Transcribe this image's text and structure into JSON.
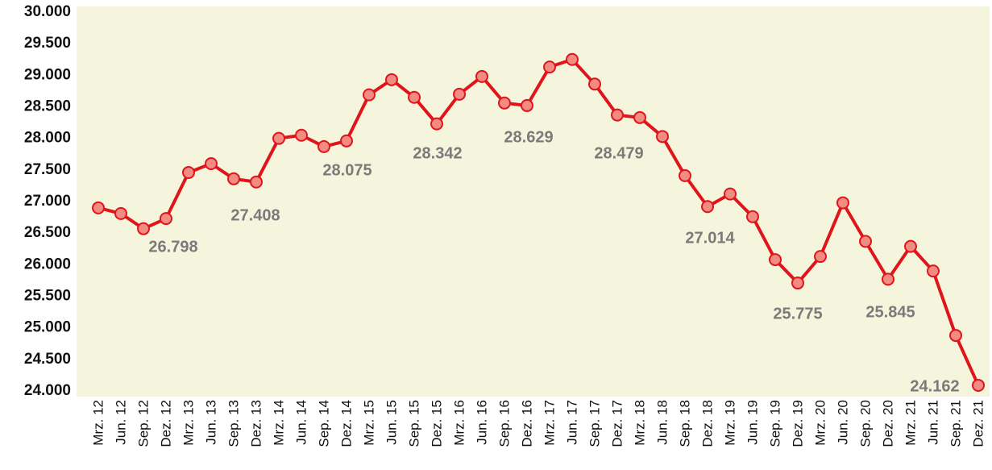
{
  "chart_data": {
    "type": "line",
    "categories": [
      "Mrz. 12",
      "Jun. 12",
      "Sep. 12",
      "Dez. 12",
      "Mrz. 13",
      "Jun. 13",
      "Sep. 13",
      "Dez. 13",
      "Mrz. 14",
      "Jun. 14",
      "Sep. 14",
      "Dez. 14",
      "Mrz. 15",
      "Jun. 15",
      "Sep. 15",
      "Dez. 15",
      "Mrz. 16",
      "Jun. 16",
      "Sep. 16",
      "Dez. 16",
      "Mrz. 17",
      "Jun. 17",
      "Sep. 17",
      "Dez. 17",
      "Mrz. 18",
      "Jun. 18",
      "Sep. 18",
      "Dez. 18",
      "Mrz. 19",
      "Jun. 19",
      "Sep. 19",
      "Dez. 19",
      "Mrz. 20",
      "Jun. 20",
      "Sep. 20",
      "Dez. 20",
      "Mrz. 21",
      "Jun. 21",
      "Sep. 21",
      "Dez. 21"
    ],
    "series": [
      {
        "color": "#e0151b",
        "marker_color": "#f28b82",
        "values": [
          26900,
          26810,
          26570,
          26730,
          27460,
          27600,
          27360,
          27310,
          28000,
          28050,
          27870,
          27960,
          28690,
          28930,
          28650,
          28230,
          28700,
          28980,
          28560,
          28520,
          29130,
          29250,
          28860,
          28370,
          28330,
          28030,
          27410,
          26920,
          27120,
          26760,
          26080,
          25710,
          26130,
          26980,
          26370,
          25770,
          26290,
          25900,
          24880,
          24090
        ]
      }
    ],
    "annotations": [
      "26.798",
      "27.408",
      "28.075",
      "28.342",
      "28.629",
      "28.479",
      "27.014",
      "25.775",
      "25.845",
      "24.162"
    ],
    "ylim": [
      24000,
      30000
    ],
    "yticks": [
      {
        "value": 24000,
        "label": "24.000"
      },
      {
        "value": 24500,
        "label": "24.500"
      },
      {
        "value": 25000,
        "label": "25.000"
      },
      {
        "value": 25500,
        "label": "25.500"
      },
      {
        "value": 26000,
        "label": "26.000"
      },
      {
        "value": 26500,
        "label": "26.500"
      },
      {
        "value": 27000,
        "label": "27.000"
      },
      {
        "value": 27500,
        "label": "27.500"
      },
      {
        "value": 28000,
        "label": "28.000"
      },
      {
        "value": 28500,
        "label": "28.500"
      },
      {
        "value": 29000,
        "label": "29.000"
      },
      {
        "value": 29500,
        "label": "29.500"
      },
      {
        "value": 30000,
        "label": "30.000"
      }
    ],
    "background": "#f4f5dc"
  }
}
